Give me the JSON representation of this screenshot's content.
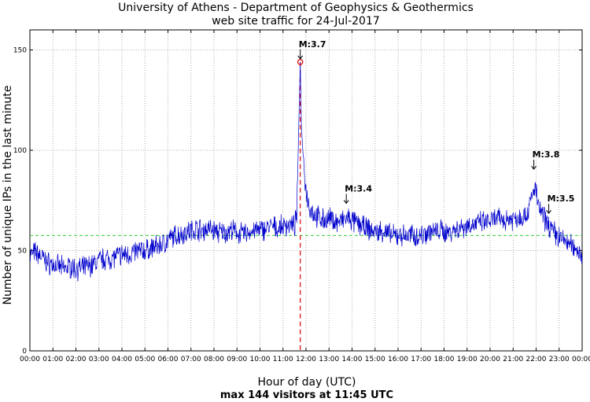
{
  "chart_data": {
    "type": "line",
    "title": "University of Athens - Department of Geophysics & Geothermics",
    "subtitle": "web site traffic for 24-Jul-2017",
    "xlabel": "Hour of day (UTC)",
    "ylabel": "Number of unique IPs in the last minute",
    "footer": "max 144 visitors at 11:45 UTC",
    "xlim": [
      0,
      24
    ],
    "ylim": [
      0,
      160
    ],
    "yticks": [
      0,
      50,
      100,
      150
    ],
    "xtick_labels": [
      "00:00",
      "01:00",
      "02:00",
      "03:00",
      "04:00",
      "05:00",
      "06:00",
      "07:00",
      "08:00",
      "09:00",
      "10:00",
      "11:00",
      "12:00",
      "13:00",
      "14:00",
      "15:00",
      "16:00",
      "17:00",
      "18:00",
      "19:00",
      "20:00",
      "21:00",
      "22:00",
      "23:00",
      "00:00"
    ],
    "grid": true,
    "mean_level": 57.5,
    "peak": {
      "hour": 11.75,
      "value": 144
    },
    "series": [
      {
        "name": "unique IPs",
        "color": "#0000cc",
        "points": [
          [
            0.0,
            48
          ],
          [
            0.25,
            49
          ],
          [
            0.5,
            47
          ],
          [
            0.75,
            44
          ],
          [
            1.0,
            43
          ],
          [
            1.25,
            42
          ],
          [
            1.5,
            41
          ],
          [
            1.75,
            42
          ],
          [
            2.0,
            41
          ],
          [
            2.25,
            41
          ],
          [
            2.5,
            42
          ],
          [
            2.75,
            43
          ],
          [
            3.0,
            45
          ],
          [
            3.25,
            46
          ],
          [
            3.5,
            46
          ],
          [
            3.75,
            47
          ],
          [
            4.0,
            48
          ],
          [
            4.25,
            48
          ],
          [
            4.5,
            49
          ],
          [
            4.75,
            50
          ],
          [
            5.0,
            50
          ],
          [
            5.25,
            51
          ],
          [
            5.5,
            52
          ],
          [
            5.75,
            53
          ],
          [
            6.0,
            55
          ],
          [
            6.25,
            57
          ],
          [
            6.5,
            58
          ],
          [
            6.75,
            59
          ],
          [
            7.0,
            60
          ],
          [
            7.25,
            61
          ],
          [
            7.5,
            60
          ],
          [
            7.75,
            61
          ],
          [
            8.0,
            60
          ],
          [
            8.25,
            59
          ],
          [
            8.5,
            59
          ],
          [
            8.75,
            60
          ],
          [
            9.0,
            59
          ],
          [
            9.25,
            58
          ],
          [
            9.5,
            59
          ],
          [
            9.75,
            60
          ],
          [
            10.0,
            60
          ],
          [
            10.25,
            61
          ],
          [
            10.5,
            62
          ],
          [
            10.75,
            61
          ],
          [
            11.0,
            62
          ],
          [
            11.25,
            63
          ],
          [
            11.5,
            62
          ],
          [
            11.6,
            68
          ],
          [
            11.7,
            120
          ],
          [
            11.75,
            144
          ],
          [
            11.8,
            112
          ],
          [
            11.9,
            92
          ],
          [
            12.0,
            80
          ],
          [
            12.15,
            72
          ],
          [
            12.35,
            68
          ],
          [
            12.6,
            66
          ],
          [
            12.85,
            65
          ],
          [
            13.1,
            66
          ],
          [
            13.35,
            64
          ],
          [
            13.6,
            65
          ],
          [
            13.85,
            66
          ],
          [
            14.1,
            64
          ],
          [
            14.35,
            63
          ],
          [
            14.6,
            61
          ],
          [
            14.85,
            60
          ],
          [
            15.1,
            59
          ],
          [
            15.35,
            60
          ],
          [
            15.6,
            58
          ],
          [
            15.85,
            57
          ],
          [
            16.1,
            58
          ],
          [
            16.35,
            57
          ],
          [
            16.6,
            58
          ],
          [
            16.85,
            57
          ],
          [
            17.1,
            58
          ],
          [
            17.35,
            60
          ],
          [
            17.6,
            59
          ],
          [
            17.85,
            60
          ],
          [
            18.1,
            59
          ],
          [
            18.35,
            60
          ],
          [
            18.6,
            61
          ],
          [
            18.85,
            62
          ],
          [
            19.1,
            63
          ],
          [
            19.35,
            63
          ],
          [
            19.6,
            64
          ],
          [
            19.85,
            64
          ],
          [
            20.1,
            65
          ],
          [
            20.35,
            66
          ],
          [
            20.6,
            65
          ],
          [
            20.85,
            66
          ],
          [
            21.1,
            66
          ],
          [
            21.35,
            67
          ],
          [
            21.6,
            68
          ],
          [
            21.85,
            78
          ],
          [
            21.95,
            82
          ],
          [
            22.1,
            72
          ],
          [
            22.35,
            66
          ],
          [
            22.6,
            62
          ],
          [
            22.85,
            58
          ],
          [
            23.1,
            56
          ],
          [
            23.35,
            54
          ],
          [
            23.6,
            52
          ],
          [
            23.85,
            50
          ],
          [
            24.0,
            47
          ]
        ]
      }
    ],
    "annotations": [
      {
        "label": "M:3.7",
        "hour": 11.75,
        "value": 144
      },
      {
        "label": "M:3.4",
        "hour": 13.75,
        "value": 72
      },
      {
        "label": "M:3.8",
        "hour": 21.9,
        "value": 89
      },
      {
        "label": "M:3.5",
        "hour": 22.55,
        "value": 67
      }
    ],
    "colors": {
      "line": "#0000cc",
      "mean": "#33cc33",
      "peak_marker": "#dd0000",
      "grid": "#999999"
    }
  }
}
